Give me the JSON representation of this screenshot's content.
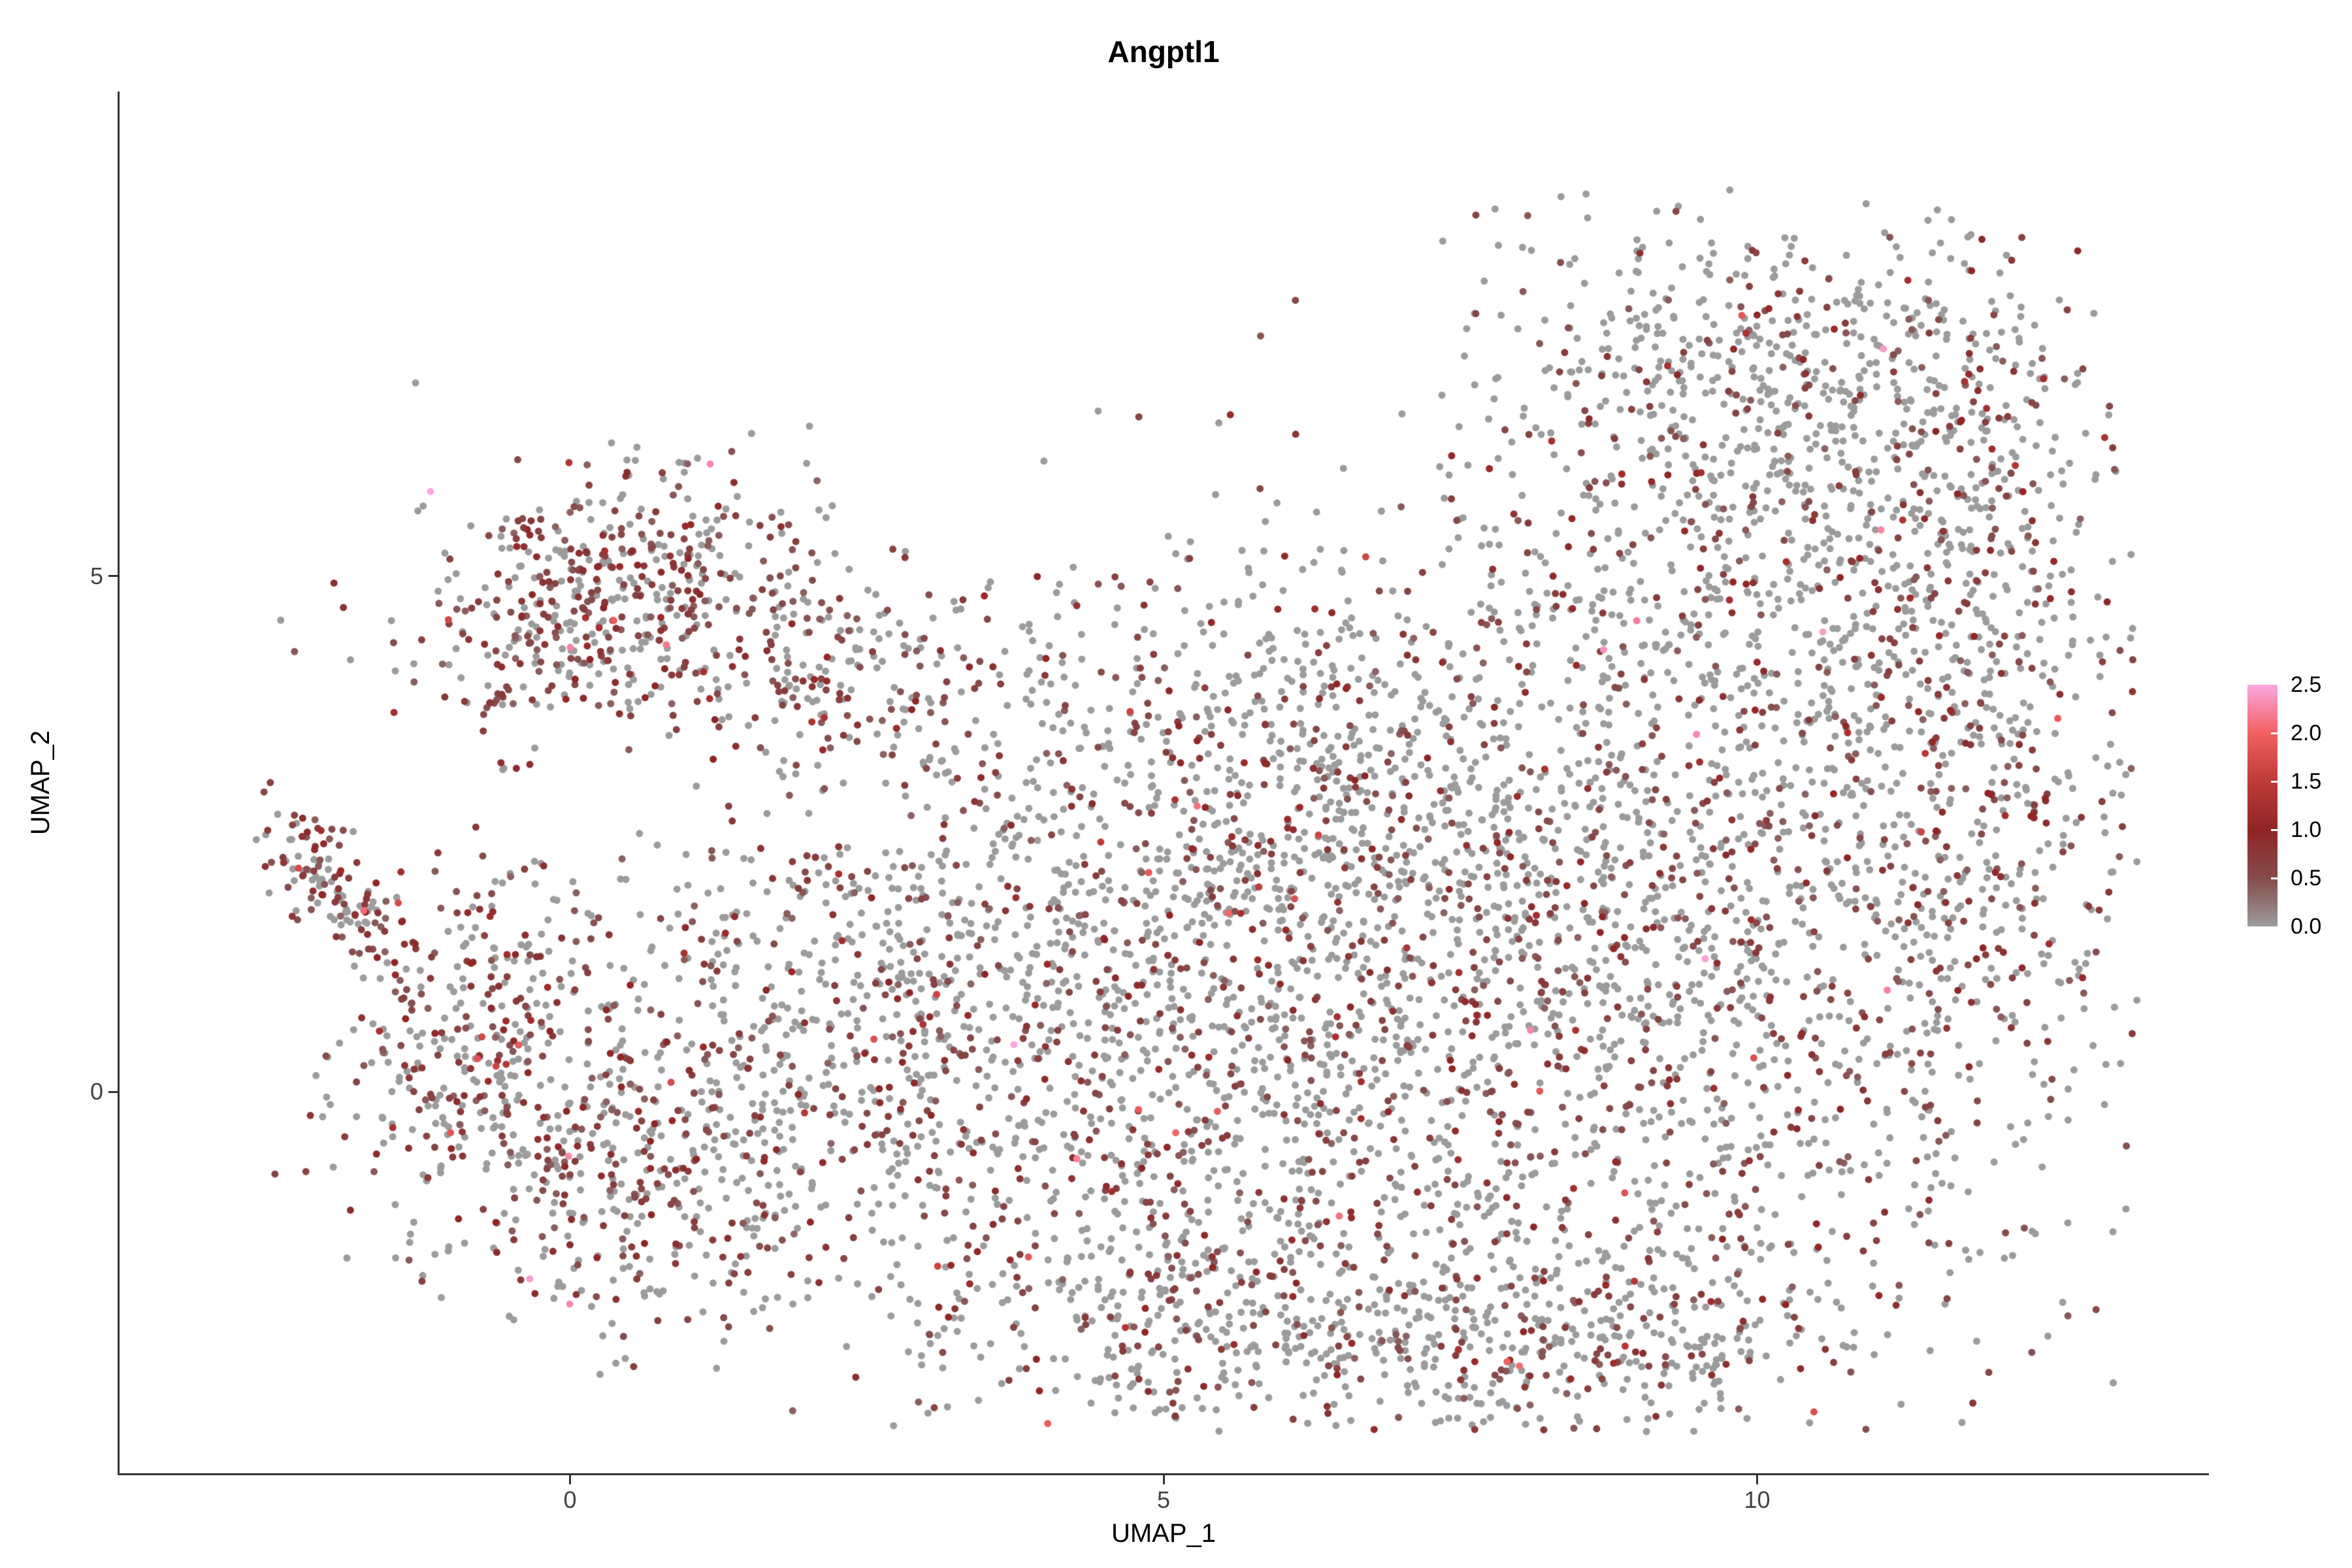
{
  "chart_data": {
    "type": "scatter",
    "title": "Angptl1",
    "xlabel": "UMAP_1",
    "ylabel": "UMAP_2",
    "xlim": [
      -3.8,
      13.8
    ],
    "ylim": [
      -3.7,
      9.7
    ],
    "grid": false,
    "legend_position": "right",
    "point_radius_px": 5.5,
    "seed": 42,
    "xticks": [
      {
        "value": 0,
        "label": "0"
      },
      {
        "value": 5,
        "label": "5"
      },
      {
        "value": 10,
        "label": "10"
      }
    ],
    "yticks": [
      {
        "value": 5,
        "label": "5"
      },
      {
        "value": 0,
        "label": "0"
      }
    ],
    "legend": {
      "ticks": [
        {
          "value": 2.5,
          "label": "2.5"
        },
        {
          "value": 2.0,
          "label": "2.0"
        },
        {
          "value": 1.5,
          "label": "1.5"
        },
        {
          "value": 1.0,
          "label": "1.0"
        },
        {
          "value": 0.5,
          "label": "0.5"
        },
        {
          "value": 0.0,
          "label": "0.0"
        }
      ],
      "range": [
        0.0,
        2.5
      ],
      "gradient": [
        {
          "value": 0.0,
          "color": "#9C9C9C"
        },
        {
          "value": 0.5,
          "color": "#864B4B"
        },
        {
          "value": 1.0,
          "color": "#8F2525"
        },
        {
          "value": 1.5,
          "color": "#BF3A3A"
        },
        {
          "value": 2.0,
          "color": "#F26060"
        },
        {
          "value": 2.5,
          "color": "#FBA8E1"
        }
      ]
    },
    "colors": {
      "zero_expression": "#9C9C9C",
      "low_expression": "#8B3434",
      "high_expression": "#FBA8E1",
      "axis": "#333333"
    },
    "clip": {
      "x": [
        -2.7,
        13.2
      ],
      "y": [
        -3.3,
        8.8
      ]
    },
    "clusters": [
      {
        "name": "top-left-cluster",
        "cx": 0.35,
        "cy": 4.75,
        "sx": 0.85,
        "sy": 0.65,
        "corr": 0.25,
        "n": 520,
        "expr_frac": 0.55
      },
      {
        "name": "top-left-tail",
        "cx": 2.2,
        "cy": 4.05,
        "sx": 0.8,
        "sy": 0.45,
        "corr": 0,
        "n": 170,
        "expr_frac": 0.5
      },
      {
        "name": "left-small-cluster",
        "cx": -2.05,
        "cy": 2.0,
        "sx": 0.3,
        "sy": 0.4,
        "corr": -0.7,
        "n": 130,
        "expr_frac": 0.6
      },
      {
        "name": "left-arm",
        "cx": -0.85,
        "cy": 0.7,
        "sx": 0.55,
        "sy": 0.85,
        "corr": 0.3,
        "n": 270,
        "expr_frac": 0.5
      },
      {
        "name": "lower-left",
        "cx": 0.3,
        "cy": -0.7,
        "sx": 0.85,
        "sy": 0.85,
        "corr": 0,
        "n": 430,
        "expr_frac": 0.42
      },
      {
        "name": "mid-left-body",
        "cx": 2.4,
        "cy": 0.5,
        "sx": 1.1,
        "sy": 1.2,
        "corr": 0,
        "n": 600,
        "expr_frac": 0.35
      },
      {
        "name": "center-body",
        "cx": 5.4,
        "cy": 0.7,
        "sx": 1.5,
        "sy": 1.6,
        "corr": 0,
        "n": 950,
        "expr_frac": 0.32
      },
      {
        "name": "center-top",
        "cx": 6.4,
        "cy": 3.1,
        "sx": 1.7,
        "sy": 1.1,
        "corr": 0,
        "n": 650,
        "expr_frac": 0.28
      },
      {
        "name": "right-body",
        "cx": 9.2,
        "cy": 1.1,
        "sx": 1.6,
        "sy": 1.7,
        "corr": 0,
        "n": 1000,
        "expr_frac": 0.32
      },
      {
        "name": "far-right",
        "cx": 11.7,
        "cy": 2.7,
        "sx": 0.85,
        "sy": 1.7,
        "corr": 0,
        "n": 480,
        "expr_frac": 0.3
      },
      {
        "name": "right-upper",
        "cx": 10.2,
        "cy": 4.9,
        "sx": 1.3,
        "sy": 0.95,
        "corr": 0,
        "n": 430,
        "expr_frac": 0.25
      },
      {
        "name": "top-lobe",
        "cx": 10.0,
        "cy": 7.0,
        "sx": 1.25,
        "sy": 0.8,
        "corr": 0,
        "n": 560,
        "expr_frac": 0.22
      },
      {
        "name": "top-lobe-right-edge",
        "cx": 11.8,
        "cy": 5.9,
        "sx": 0.55,
        "sy": 0.95,
        "corr": 0,
        "n": 190,
        "expr_frac": 0.3
      },
      {
        "name": "bottom-center",
        "cx": 5.9,
        "cy": -2.2,
        "sx": 1.5,
        "sy": 0.65,
        "corr": 0,
        "n": 470,
        "expr_frac": 0.3
      },
      {
        "name": "bottom-right",
        "cx": 8.9,
        "cy": -2.4,
        "sx": 1.25,
        "sy": 0.65,
        "corr": 0,
        "n": 380,
        "expr_frac": 0.32
      },
      {
        "name": "body-fill",
        "cx": 7.3,
        "cy": 1.6,
        "sx": 2.9,
        "sy": 2.1,
        "corr": 0,
        "n": 650,
        "expr_frac": 0.3
      }
    ]
  }
}
